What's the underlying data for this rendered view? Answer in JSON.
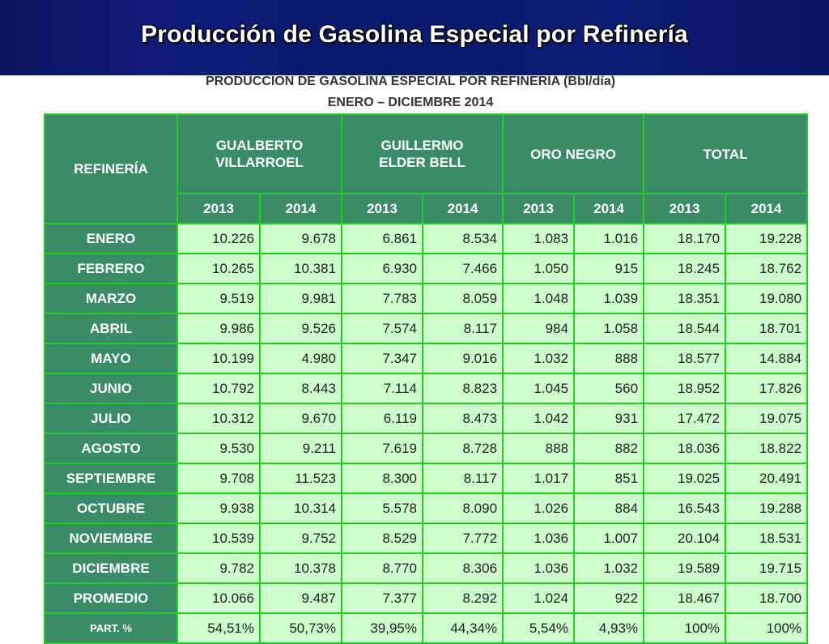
{
  "header": {
    "title": "Producción de Gasolina Especial por Refinería"
  },
  "table_title": {
    "line1": "PRODUCCIÓN DE GASOLINA ESPECIAL POR REFINERÍA (Bbl/día)",
    "line2": "ENERO – DICIEMBRE 2014"
  },
  "columns": {
    "label": "REFINERÍA",
    "groups": [
      {
        "line1": "GUALBERTO",
        "line2": "VILLARROEL"
      },
      {
        "line1": "GUILLERMO",
        "line2": "ELDER BELL"
      },
      {
        "line1": "ORO NEGRO",
        "line2": ""
      },
      {
        "line1": "TOTAL",
        "line2": ""
      }
    ],
    "years": [
      "2013",
      "2014",
      "2013",
      "2014",
      "2013",
      "2014",
      "2013",
      "2014"
    ]
  },
  "rows": [
    {
      "label": "ENERO",
      "values": [
        "10.226",
        "9.678",
        "6.861",
        "8.534",
        "1.083",
        "1.016",
        "18.170",
        "19.228"
      ]
    },
    {
      "label": "FEBRERO",
      "values": [
        "10.265",
        "10.381",
        "6.930",
        "7.466",
        "1.050",
        "915",
        "18.245",
        "18.762"
      ]
    },
    {
      "label": "MARZO",
      "values": [
        "9.519",
        "9.981",
        "7.783",
        "8.059",
        "1.048",
        "1.039",
        "18.351",
        "19.080"
      ]
    },
    {
      "label": "ABRIL",
      "values": [
        "9.986",
        "9.526",
        "7.574",
        "8.117",
        "984",
        "1.058",
        "18.544",
        "18.701"
      ]
    },
    {
      "label": "MAYO",
      "values": [
        "10.199",
        "4.980",
        "7.347",
        "9.016",
        "1.032",
        "888",
        "18.577",
        "14.884"
      ]
    },
    {
      "label": "JUNIO",
      "values": [
        "10.792",
        "8.443",
        "7.114",
        "8.823",
        "1.045",
        "560",
        "18.952",
        "17.826"
      ]
    },
    {
      "label": "JULIO",
      "values": [
        "10.312",
        "9.670",
        "6.119",
        "8.473",
        "1.042",
        "931",
        "17.472",
        "19.075"
      ]
    },
    {
      "label": "AGOSTO",
      "values": [
        "9.530",
        "9.211",
        "7.619",
        "8.728",
        "888",
        "882",
        "18.036",
        "18.822"
      ]
    },
    {
      "label": "SEPTIEMBRE",
      "values": [
        "9.708",
        "11.523",
        "8.300",
        "8.117",
        "1.017",
        "851",
        "19.025",
        "20.491"
      ]
    },
    {
      "label": "OCTUBRE",
      "values": [
        "9.938",
        "10.314",
        "5.578",
        "8.090",
        "1.026",
        "884",
        "16.543",
        "19.288"
      ]
    },
    {
      "label": "NOVIEMBRE",
      "values": [
        "10.539",
        "9.752",
        "8.529",
        "7.772",
        "1.036",
        "1.007",
        "20.104",
        "18.531"
      ]
    },
    {
      "label": "DICIEMBRE",
      "values": [
        "9.782",
        "10.378",
        "8.770",
        "8.306",
        "1.036",
        "1.032",
        "19.589",
        "19.715"
      ]
    },
    {
      "label": "PROMEDIO",
      "values": [
        "10.066",
        "9.487",
        "7.377",
        "8.292",
        "1.024",
        "922",
        "18.467",
        "18.700"
      ]
    },
    {
      "label": "PART. %",
      "values": [
        "54,51%",
        "50,73%",
        "39,95%",
        "44,34%",
        "5,54%",
        "4,93%",
        "100%",
        "100%"
      ]
    }
  ],
  "colors": {
    "title_bar": "#0d1a70",
    "header_cell": "#3a8c68",
    "data_cell": "#ccffcc",
    "grid_line": "#22cc22"
  }
}
